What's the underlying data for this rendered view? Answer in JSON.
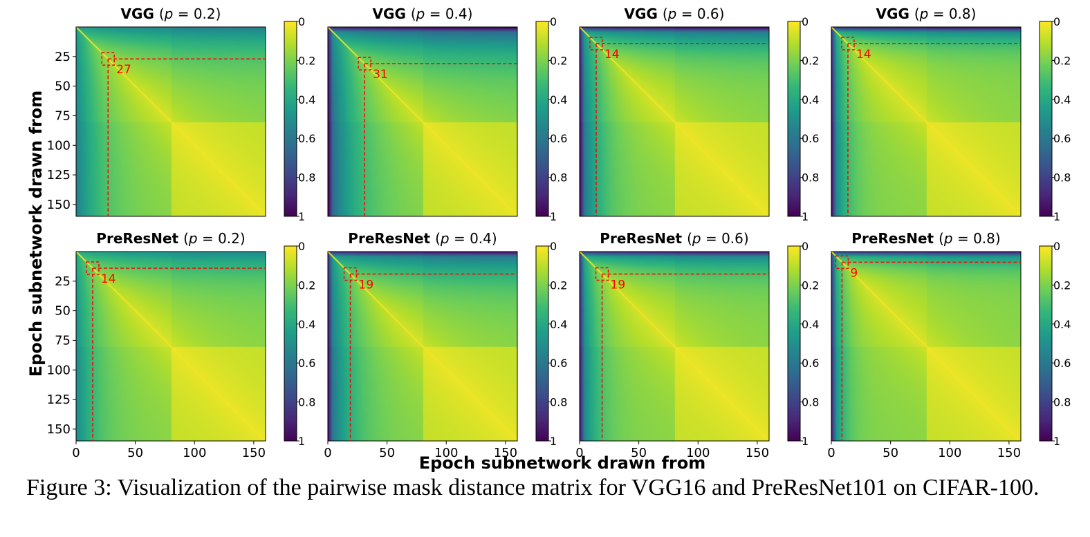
{
  "chart_data": {
    "type": "heatmap",
    "figure_ylabel": "Epoch subnetwork drawn from",
    "figure_xlabel": "Epoch subnetwork drawn from",
    "colormap": "viridis_r",
    "colormap_stops": [
      "#fde725",
      "#b5de2b",
      "#6ece58",
      "#35b779",
      "#1f9e89",
      "#26828e",
      "#31688e",
      "#3e4989",
      "#482878",
      "#440154"
    ],
    "highlight_color": "#ff0000",
    "epochs": 160,
    "xlim": [
      0,
      160
    ],
    "ylim": [
      160,
      0
    ],
    "xticks": [
      0,
      50,
      100,
      150
    ],
    "yticks": [
      25,
      50,
      75,
      100,
      125,
      150
    ],
    "colorbar": {
      "range": [
        0,
        1
      ],
      "ticks": [
        "0",
        "0.2",
        "0.4",
        "0.6",
        "0.8",
        "1"
      ]
    },
    "panels": [
      {
        "model": "VGG",
        "p": "0.2",
        "marked_epoch": 27,
        "label": "27",
        "row": 0,
        "col": 0
      },
      {
        "model": "VGG",
        "p": "0.4",
        "marked_epoch": 31,
        "label": "31",
        "row": 0,
        "col": 1
      },
      {
        "model": "VGG",
        "p": "0.6",
        "marked_epoch": 14,
        "label": "14",
        "row": 0,
        "col": 2
      },
      {
        "model": "VGG",
        "p": "0.8",
        "marked_epoch": 14,
        "label": "14",
        "row": 0,
        "col": 3
      },
      {
        "model": "PreResNet",
        "p": "0.2",
        "marked_epoch": 14,
        "label": "14",
        "row": 1,
        "col": 0
      },
      {
        "model": "PreResNet",
        "p": "0.4",
        "marked_epoch": 19,
        "label": "19",
        "row": 1,
        "col": 1
      },
      {
        "model": "PreResNet",
        "p": "0.6",
        "marked_epoch": 19,
        "label": "19",
        "row": 1,
        "col": 2
      },
      {
        "model": "PreResNet",
        "p": "0.8",
        "marked_epoch": 9,
        "label": "9",
        "row": 1,
        "col": 3
      }
    ]
  },
  "caption": "Figure 3: Visualization of the pairwise mask distance matrix for VGG16 and PreResNet101 on CIFAR-100."
}
